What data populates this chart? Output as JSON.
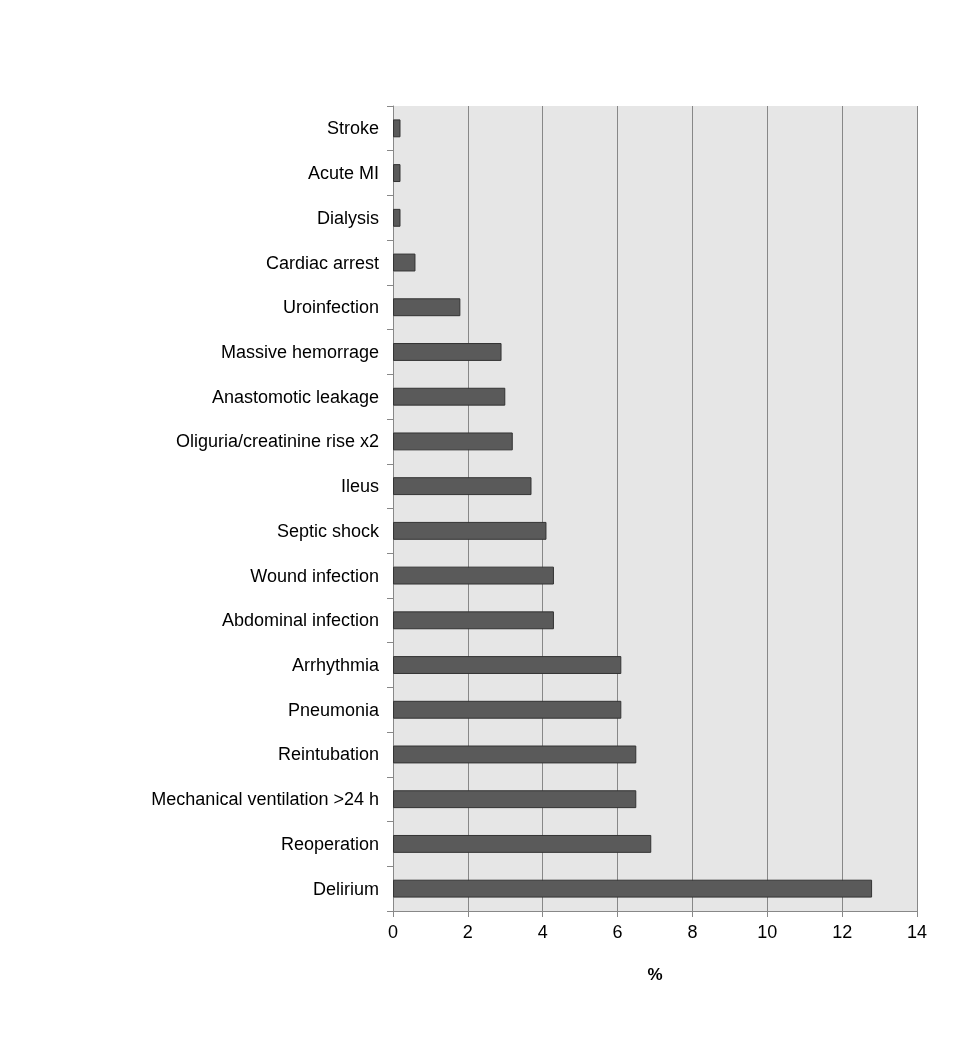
{
  "chart_data": {
    "type": "bar",
    "orientation": "horizontal",
    "xlabel": "%",
    "categories": [
      "Stroke",
      "Acute MI",
      "Dialysis",
      "Cardiac arrest",
      "Uroinfection",
      "Massive hemorrage",
      "Anastomotic leakage",
      "Oliguria/creatinine rise x2",
      "Ileus",
      "Septic shock",
      "Wound infection",
      "Abdominal infection",
      "Arrhythmia",
      "Pneumonia",
      "Reintubation",
      "Mechanical ventilation >24 h",
      "Reoperation",
      "Delirium"
    ],
    "values": [
      0.2,
      0.2,
      0.2,
      0.6,
      1.8,
      2.9,
      3.0,
      3.2,
      3.7,
      4.1,
      4.3,
      4.3,
      6.1,
      6.1,
      6.5,
      6.5,
      6.9,
      12.8
    ],
    "color": "#5a5a5a",
    "xlim": [
      0,
      14
    ],
    "xticks": [
      0,
      2,
      4,
      6,
      8,
      10,
      12,
      14
    ],
    "grid": "x"
  }
}
